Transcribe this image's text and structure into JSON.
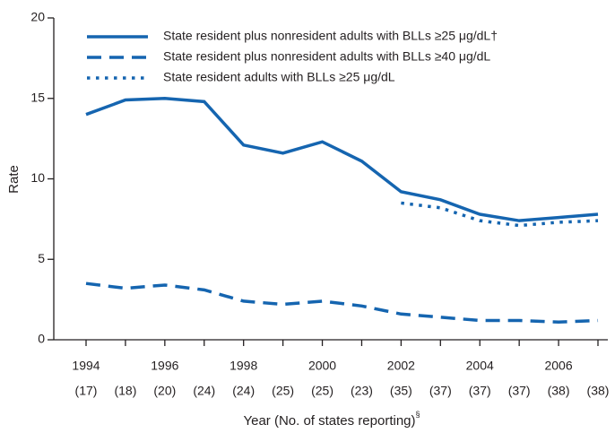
{
  "chart_data": {
    "type": "line",
    "ylabel": "Rate",
    "xlabel": "Year (No. of states reporting)",
    "xlabel_note": "§",
    "x": [
      1994,
      1995,
      1996,
      1997,
      1998,
      1999,
      2000,
      2001,
      2002,
      2003,
      2004,
      2005,
      2006,
      2007
    ],
    "states_reporting": [
      "(17)",
      "(18)",
      "(20)",
      "(24)",
      "(24)",
      "(25)",
      "(25)",
      "(23)",
      "(35)",
      "(37)",
      "(37)",
      "(37)",
      "(38)",
      "(38)"
    ],
    "xlim": [
      1994,
      2007
    ],
    "xticks": [
      1994,
      1996,
      1998,
      2000,
      2002,
      2004,
      2006
    ],
    "ylim": [
      0,
      20
    ],
    "yticks": [
      0,
      5,
      10,
      15,
      20
    ],
    "grid": false,
    "legend": "top",
    "series": [
      {
        "name": "State resident plus nonresident adults with BLLs ≥25 μg/dL†",
        "color": "#1565b0",
        "style": "solid",
        "values": [
          14.0,
          14.9,
          15.0,
          14.8,
          12.1,
          11.6,
          12.3,
          11.1,
          9.2,
          8.7,
          7.8,
          7.4,
          7.6,
          7.8
        ]
      },
      {
        "name": "State resident plus nonresident adults with BLLs ≥40 μg/dL",
        "color": "#1565b0",
        "style": "dashed",
        "values": [
          3.5,
          3.2,
          3.4,
          3.1,
          2.4,
          2.2,
          2.4,
          2.1,
          1.6,
          1.4,
          1.2,
          1.2,
          1.1,
          1.2
        ]
      },
      {
        "name": "State resident adults with BLLs ≥25 μg/dL",
        "color": "#1565b0",
        "style": "dotted",
        "values": [
          null,
          null,
          null,
          null,
          null,
          null,
          null,
          null,
          8.5,
          8.2,
          7.4,
          7.1,
          7.3,
          7.4
        ]
      }
    ]
  }
}
